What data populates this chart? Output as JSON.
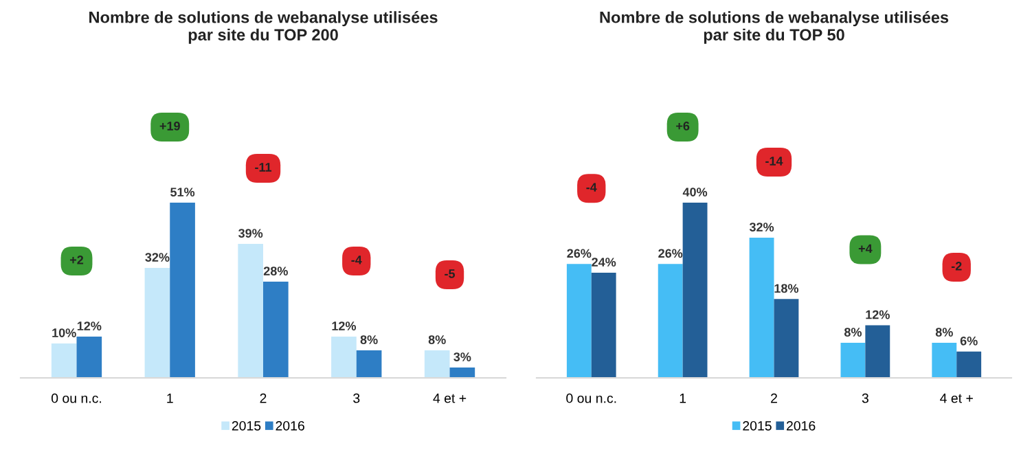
{
  "chart_data": [
    {
      "type": "bar",
      "title": "Nombre de solutions de webanalyse utilisées\npar site du TOP 200",
      "categories": [
        "0 ou n.c.",
        "1",
        "2",
        "3",
        "4 et +"
      ],
      "series": [
        {
          "name": "2015",
          "color": "#c5e8fa",
          "values": [
            10,
            32,
            39,
            12,
            8
          ],
          "value_labels": [
            "10%",
            "32%",
            "39%",
            "12%",
            "8%"
          ]
        },
        {
          "name": "2016",
          "color": "#2e7ec5",
          "values": [
            12,
            51,
            28,
            8,
            3
          ],
          "value_labels": [
            "12%",
            "51%",
            "28%",
            "8%",
            "3%"
          ]
        }
      ],
      "tick_labels": "x",
      "legend": "bottom",
      "annotations": [
        "+2",
        "+19",
        "-11",
        "-4",
        "-5"
      ]
    },
    {
      "type": "bar",
      "title": "Nombre de solutions de webanalyse utilisées\npar site du TOP 50",
      "categories": [
        "0 ou n.c.",
        "1",
        "2",
        "3",
        "4 et +"
      ],
      "series": [
        {
          "name": "2015",
          "color": "#45bdf5",
          "values": [
            26,
            26,
            32,
            8,
            8
          ],
          "value_labels": [
            "26%",
            "26%",
            "32%",
            "8%",
            "8%"
          ]
        },
        {
          "name": "2016",
          "color": "#235f97",
          "values": [
            24,
            40,
            18,
            12,
            6
          ],
          "value_labels": [
            "24%",
            "40%",
            "18%",
            "12%",
            "6%"
          ]
        }
      ],
      "tick_labels": "x",
      "legend": "bottom",
      "annotations": [
        "-4",
        "+6",
        "-14",
        "+4",
        "-2"
      ]
    }
  ]
}
